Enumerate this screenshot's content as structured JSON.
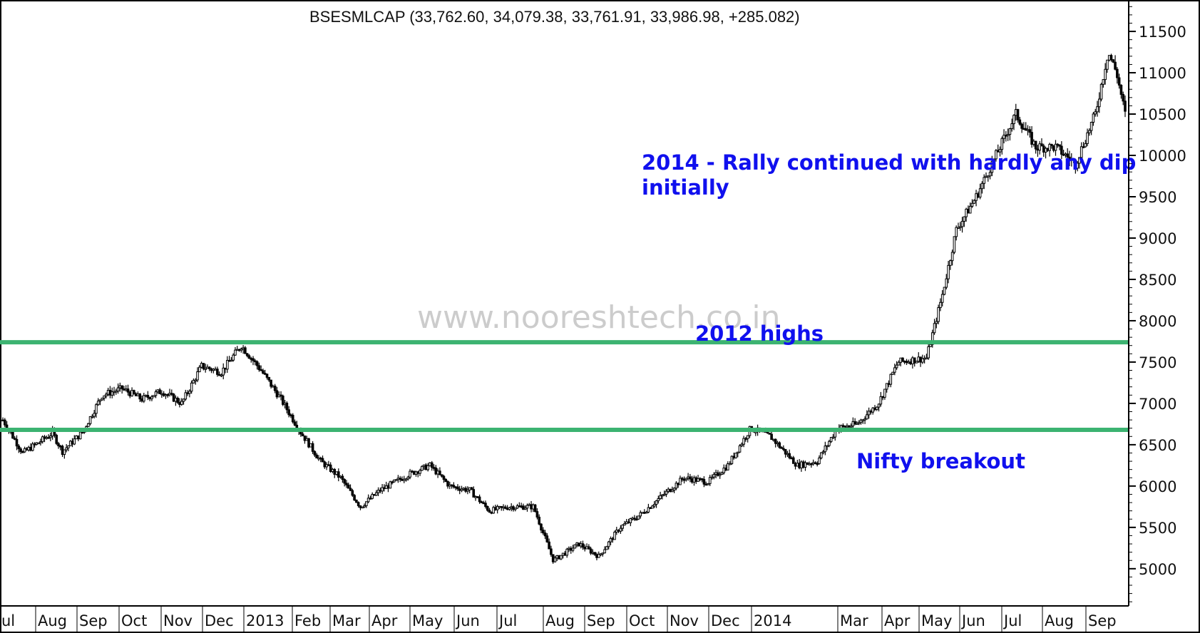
{
  "chart_data": {
    "type": "candlestick",
    "title": "BSESMLCAP (33,762.60, 34,079.38, 33,761.91, 33,986.98, +285.082)",
    "watermark": "www.nooreshtech.co.in",
    "y_tick_labels": [
      "11500",
      "11000",
      "10500",
      "10000",
      "9500",
      "9000",
      "8500",
      "8000",
      "7500",
      "7000",
      "6500",
      "6000",
      "5500",
      "5000"
    ],
    "x_tick_labels": [
      "ul",
      "Aug",
      "Sep",
      "Oct",
      "Nov",
      "Dec",
      "2013",
      "Feb",
      "Mar",
      "Apr",
      "May",
      "Jun",
      "Jul",
      "Aug",
      "Sep",
      "Oct",
      "Nov",
      "Dec",
      "2014",
      "Mar",
      "Apr",
      "May",
      "Jun",
      "Jul",
      "Aug",
      "Sep"
    ],
    "ylim": [
      4550,
      11880
    ],
    "horizontal_lines": [
      {
        "value": 7740,
        "color": "#3cb371"
      },
      {
        "value": 6680,
        "color": "#3cb371"
      }
    ],
    "annotations": {
      "rally_line1": "2014 - Rally continued with hardly any dip",
      "rally_line2": "initially",
      "highs_2012": "2012 highs",
      "nifty": "Nifty breakout"
    },
    "series": [
      {
        "x": [
          "2012-07-23",
          "2012-08-06",
          "2012-08-27",
          "2012-09-03",
          "2012-09-17",
          "2012-10-01",
          "2012-10-15",
          "2012-10-29",
          "2012-11-12",
          "2012-11-26",
          "2012-12-10",
          "2012-12-24",
          "2013-01-07",
          "2013-01-21",
          "2013-02-04",
          "2013-02-18",
          "2013-03-04",
          "2013-03-18",
          "2013-04-01",
          "2013-04-15",
          "2013-05-06",
          "2013-05-20",
          "2013-06-03",
          "2013-06-17",
          "2013-07-01",
          "2013-07-15",
          "2013-08-01",
          "2013-08-15",
          "2013-09-02",
          "2013-09-16",
          "2013-10-01",
          "2013-10-15",
          "2013-11-01",
          "2013-11-15",
          "2013-12-02",
          "2013-12-16",
          "2014-01-01",
          "2014-01-15",
          "2014-02-03",
          "2014-02-17",
          "2014-03-03",
          "2014-03-17",
          "2014-04-01",
          "2014-04-15",
          "2014-05-05",
          "2014-05-16",
          "2014-05-26",
          "2014-06-09",
          "2014-06-23",
          "2014-07-07",
          "2014-07-21",
          "2014-08-04",
          "2014-08-18",
          "2014-09-01",
          "2014-09-10",
          "2014-09-16",
          "2014-09-22"
        ],
        "close": [
          6800,
          6400,
          6640,
          6420,
          6650,
          7100,
          7180,
          7050,
          7150,
          7000,
          7450,
          7380,
          7700,
          7400,
          7050,
          6650,
          6300,
          6100,
          5750,
          5950,
          6150,
          6250,
          6000,
          5950,
          5700,
          5750,
          5750,
          5100,
          5300,
          5150,
          5500,
          5650,
          5900,
          6100,
          6050,
          6250,
          6700,
          6600,
          6250,
          6300,
          6700,
          6750,
          7000,
          7500,
          7550,
          8300,
          9100,
          9500,
          10000,
          10500,
          10100,
          10100,
          9900,
          10500,
          11250,
          11000,
          10500
        ]
      }
    ]
  }
}
